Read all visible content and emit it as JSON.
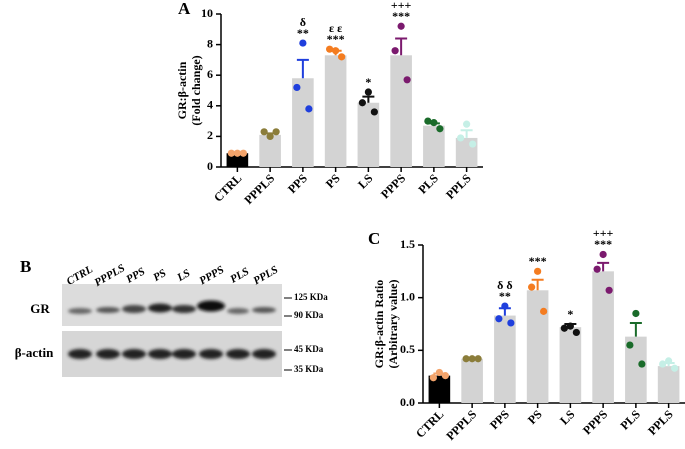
{
  "chart_data": [
    {
      "type": "bar",
      "panel_label": "A",
      "ylabel": [
        "GR:β-actin",
        "(Fold change)"
      ],
      "categories": [
        "CTRL",
        "PPPLS",
        "PPS",
        "PS",
        "LS",
        "PPPS",
        "PLS",
        "PPLS"
      ],
      "values": [
        0.9,
        2.1,
        5.8,
        7.3,
        4.2,
        7.3,
        2.7,
        1.9
      ],
      "errors": [
        0.05,
        0.1,
        1.2,
        0.3,
        0.4,
        1.1,
        0.15,
        0.5
      ],
      "points": [
        [
          0.9,
          0.9,
          0.9
        ],
        [
          2.0,
          2.3,
          2.3
        ],
        [
          8.1,
          5.2,
          3.8
        ],
        [
          7.6,
          7.7,
          7.2
        ],
        [
          4.9,
          4.2,
          3.6
        ],
        [
          9.2,
          7.6,
          5.7
        ],
        [
          2.9,
          3.0,
          2.5
        ],
        [
          2.8,
          1.9,
          1.5
        ]
      ],
      "bar_colors": [
        "#000000",
        "#d3d3d3",
        "#d3d3d3",
        "#d3d3d3",
        "#d3d3d3",
        "#d3d3d3",
        "#d3d3d3",
        "#d3d3d3"
      ],
      "point_colors": [
        "#f4a46b",
        "#8b7d3a",
        "#1f3fdd",
        "#f47c20",
        "#111111",
        "#7b1a6e",
        "#1a6b2a",
        "#c5efe6"
      ],
      "annotations": [
        [],
        [],
        [
          "δ",
          "**"
        ],
        [
          "ε ε",
          "***"
        ],
        [
          "*"
        ],
        [
          "+++",
          "***"
        ],
        [],
        []
      ],
      "ylim": [
        0,
        10
      ],
      "yticks": [
        0,
        2,
        4,
        6,
        8,
        10
      ]
    },
    {
      "type": "bar",
      "panel_label": "C",
      "ylabel": [
        "GR:β-actin Ratio",
        "(Arbitrary value)"
      ],
      "categories": [
        "CTRL",
        "PPPLS",
        "PPS",
        "PS",
        "LS",
        "PPPS",
        "PLS",
        "PPLS"
      ],
      "values": [
        0.26,
        0.42,
        0.83,
        1.07,
        0.72,
        1.25,
        0.63,
        0.35
      ],
      "errors": [
        0.02,
        0.01,
        0.07,
        0.1,
        0.03,
        0.08,
        0.13,
        0.03
      ],
      "points": [
        [
          0.29,
          0.24,
          0.26
        ],
        [
          0.42,
          0.42,
          0.42
        ],
        [
          0.92,
          0.8,
          0.76
        ],
        [
          1.25,
          1.1,
          0.87
        ],
        [
          0.73,
          0.71,
          0.67
        ],
        [
          1.41,
          1.27,
          1.07
        ],
        [
          0.85,
          0.55,
          0.37
        ],
        [
          0.4,
          0.37,
          0.33
        ]
      ],
      "bar_colors": [
        "#000000",
        "#d3d3d3",
        "#d3d3d3",
        "#d3d3d3",
        "#d3d3d3",
        "#d3d3d3",
        "#d3d3d3",
        "#d3d3d3"
      ],
      "point_colors": [
        "#f4a46b",
        "#8b7d3a",
        "#1f3fdd",
        "#f47c20",
        "#111111",
        "#7b1a6e",
        "#1a6b2a",
        "#c5efe6"
      ],
      "annotations": [
        [],
        [],
        [
          "δ δ",
          "**"
        ],
        [
          "***"
        ],
        [
          "*"
        ],
        [
          "+++",
          "***"
        ],
        [],
        []
      ],
      "ylim": [
        0,
        1.5
      ],
      "yticks": [
        {
          "value": 0,
          "label": "0.0"
        },
        0.5,
        {
          "value": 1,
          "label": "1.0"
        },
        1.5
      ]
    }
  ],
  "blot": {
    "panel_label": "B",
    "lanes": [
      "CTRL",
      "PPPLS",
      "PPS",
      "PS",
      "LS",
      "PPPS",
      "PLS",
      "PPLS"
    ],
    "rows": [
      "GR",
      "β-actin"
    ],
    "markers": [
      "125 KDa",
      "90 KDa",
      "45 KDa",
      "35 KDa"
    ]
  }
}
